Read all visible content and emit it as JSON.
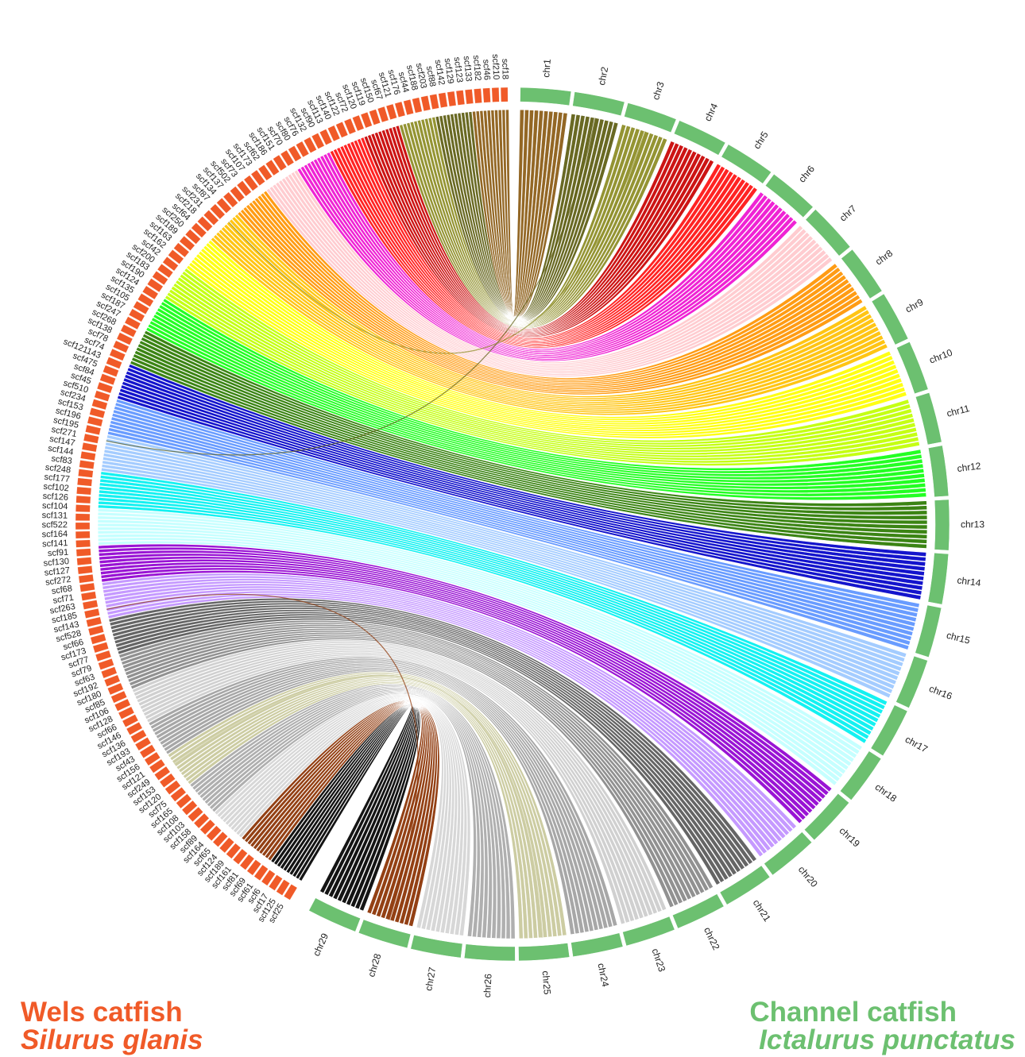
{
  "legend": {
    "wels": {
      "common": "Wels catfish",
      "scientific": "Silurus glanis",
      "color": "#f05a28"
    },
    "channel": {
      "common": "Channel catfish",
      "scientific": "Ictalurus punctatus",
      "color": "#6cc070"
    }
  },
  "channel_chromosomes": [
    {
      "name": "chr1",
      "color": "#8a5a12"
    },
    {
      "name": "chr2",
      "color": "#5c5c10"
    },
    {
      "name": "chr3",
      "color": "#8b8b22"
    },
    {
      "name": "chr4",
      "color": "#c80000"
    },
    {
      "name": "chr5",
      "color": "#ff1010"
    },
    {
      "name": "chr6",
      "color": "#ee10d0"
    },
    {
      "name": "chr7",
      "color": "#ffc8cc"
    },
    {
      "name": "chr8",
      "color": "#ff9400"
    },
    {
      "name": "chr9",
      "color": "#ffc000"
    },
    {
      "name": "chr10",
      "color": "#ffff00"
    },
    {
      "name": "chr11",
      "color": "#c0ff00"
    },
    {
      "name": "chr12",
      "color": "#10ff10"
    },
    {
      "name": "chr13",
      "color": "#2a7a00"
    },
    {
      "name": "chr14",
      "color": "#0000c8"
    },
    {
      "name": "chr15",
      "color": "#5c94ff"
    },
    {
      "name": "chr16",
      "color": "#9cc8ff"
    },
    {
      "name": "chr17",
      "color": "#00f0f0"
    },
    {
      "name": "chr18",
      "color": "#c0ffff"
    },
    {
      "name": "chr19",
      "color": "#9000d0"
    },
    {
      "name": "chr20",
      "color": "#c090ff"
    },
    {
      "name": "chr21",
      "color": "#585858"
    },
    {
      "name": "chr22",
      "color": "#888888"
    },
    {
      "name": "chr23",
      "color": "#cccccc"
    },
    {
      "name": "chr24",
      "color": "#a0a0a0"
    },
    {
      "name": "chr25",
      "color": "#c8c89a"
    },
    {
      "name": "chr26",
      "color": "#a8a8a8"
    },
    {
      "name": "chr27",
      "color": "#d4d4d4"
    },
    {
      "name": "chr28",
      "color": "#8a3000"
    },
    {
      "name": "chr29",
      "color": "#000000"
    }
  ],
  "wels_scaffolds": [
    "scf25",
    "scf125",
    "scf17",
    "scf6",
    "scf61",
    "scf69",
    "scf81",
    "scf161",
    "scf189",
    "scf124",
    "scf65",
    "scf164",
    "scf89",
    "scf158",
    "scf103",
    "scf108",
    "scf165",
    "scf75",
    "scf120",
    "scf153",
    "scf249",
    "scf121",
    "scf156",
    "scf43",
    "scf193",
    "scf136",
    "scf146",
    "scf66",
    "scf128",
    "scf106",
    "scf85",
    "scf180",
    "scf192",
    "scf63",
    "scf79",
    "scf77",
    "scf173",
    "scf66",
    "scf528",
    "scf143",
    "scf185",
    "scf263",
    "scf71",
    "scf68",
    "scf272",
    "scf127",
    "scf130",
    "scf91",
    "scf141",
    "scf164",
    "scf522",
    "scf131",
    "scf104",
    "scf126",
    "scf102",
    "scf177",
    "scf248",
    "scf83",
    "scf144",
    "scf147",
    "scf271",
    "scf195",
    "scf196",
    "scf153",
    "scf234",
    "scf510",
    "scf45",
    "scf84",
    "scf475",
    "scf121143",
    "scf74",
    "scf78",
    "scf138",
    "scf268",
    "scf247",
    "scf187",
    "scf105",
    "scf135",
    "scf124",
    "scf190",
    "scf183",
    "scf200",
    "scf42",
    "scf162",
    "scf163",
    "scf189",
    "scf250",
    "scf64",
    "scf218",
    "scf231",
    "scf87",
    "scf134",
    "scf137",
    "scf502",
    "scf73",
    "scf107",
    "scf173",
    "scf62",
    "scf186",
    "scf151",
    "scf70",
    "scf80",
    "scf76",
    "scf132",
    "scf90",
    "scf113",
    "scf140",
    "scf122",
    "scf72",
    "scf120",
    "scf119",
    "scf150",
    "scf67",
    "scf121",
    "scf176",
    "scf44",
    "scf188",
    "scf203",
    "scf88",
    "scf142",
    "scf129",
    "scf123",
    "scf133",
    "scf182",
    "scf46",
    "scf210",
    "scf18"
  ]
}
